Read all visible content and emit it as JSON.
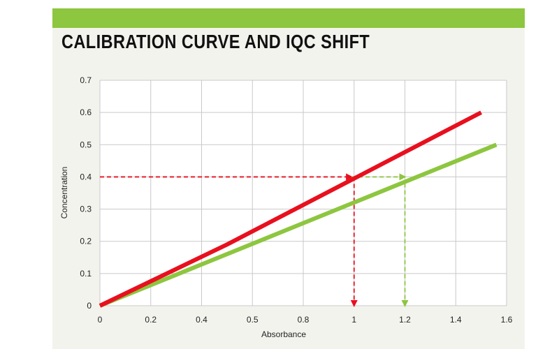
{
  "chart_data": {
    "type": "line",
    "title": "CALIBRATION CURVE AND IQC SHIFT",
    "xlabel": "Absorbance",
    "ylabel": "Concentration",
    "xlim": [
      0,
      1.6
    ],
    "ylim": [
      0,
      0.7
    ],
    "x_ticks": [
      "0",
      "0.2",
      "0.4",
      "0.5",
      "0.8",
      "1",
      "1.2",
      "1.4",
      "1.6"
    ],
    "y_ticks": [
      "0",
      "0.1",
      "0.2",
      "0.3",
      "0.4",
      "0.5",
      "0.6",
      "0.7"
    ],
    "grid": true,
    "series": [
      {
        "color": "#e8101e",
        "x": [
          0,
          0.5,
          1.5
        ],
        "y": [
          0,
          0.19,
          0.6
        ]
      },
      {
        "color": "#8dc63f",
        "x": [
          0,
          1.56
        ],
        "y": [
          0,
          0.5
        ]
      }
    ],
    "annotations": [
      {
        "type": "dashed-arrow-horizontal",
        "color": "#e8101e",
        "from": [
          0,
          0.4
        ],
        "to": [
          0.99,
          0.4
        ]
      },
      {
        "type": "dashed-arrow-horizontal",
        "color": "#8dc63f",
        "from": [
          0.99,
          0.4
        ],
        "to": [
          1.2,
          0.4
        ]
      },
      {
        "type": "dashed-arrow-vertical",
        "color": "#e8101e",
        "from": [
          1.0,
          0.4
        ],
        "to": [
          1.0,
          0
        ]
      },
      {
        "type": "dashed-arrow-vertical",
        "color": "#8dc63f",
        "from": [
          1.2,
          0.38
        ],
        "to": [
          1.2,
          0
        ]
      }
    ]
  }
}
